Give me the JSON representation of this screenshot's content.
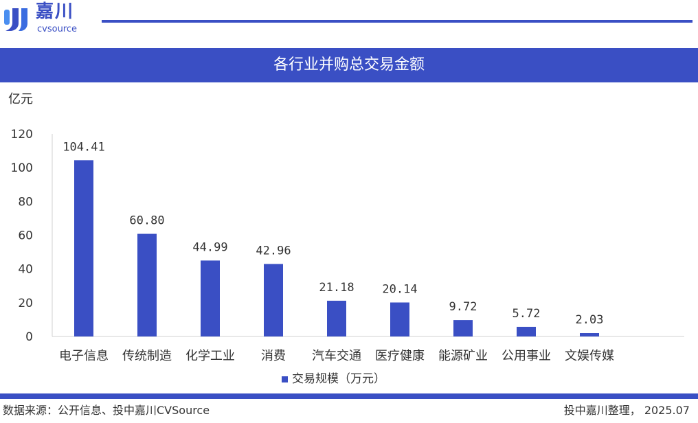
{
  "logo": {
    "cn": "嘉川",
    "en": "cvsource"
  },
  "title": "各行业并购总交易金额",
  "footer": {
    "source": "数据来源：公开信息、投中嘉川CVSource",
    "credit": "投中嘉川整理， 2025.07"
  },
  "colors": {
    "bar": "#3a4fc4",
    "accent": "#3a4fc4"
  },
  "chart_data": {
    "type": "bar",
    "ylabel": "亿元",
    "ylim": [
      0,
      120
    ],
    "yticks": [
      0,
      20,
      40,
      60,
      80,
      100,
      120
    ],
    "categories": [
      "电子信息",
      "传统制造",
      "化学工业",
      "消费",
      "汽车交通",
      "医疗健康",
      "能源矿业",
      "公用事业",
      "文娱传媒"
    ],
    "series": [
      {
        "name": "交易规模（万元）",
        "values": [
          104.41,
          60.8,
          44.99,
          42.96,
          21.18,
          20.14,
          9.72,
          5.72,
          2.03
        ],
        "labels": [
          "104.41",
          "60.80",
          "44.99",
          "42.96",
          "21.18",
          "20.14",
          "9.72",
          "5.72",
          "2.03"
        ]
      }
    ],
    "legend": "bottom",
    "grid": false
  }
}
